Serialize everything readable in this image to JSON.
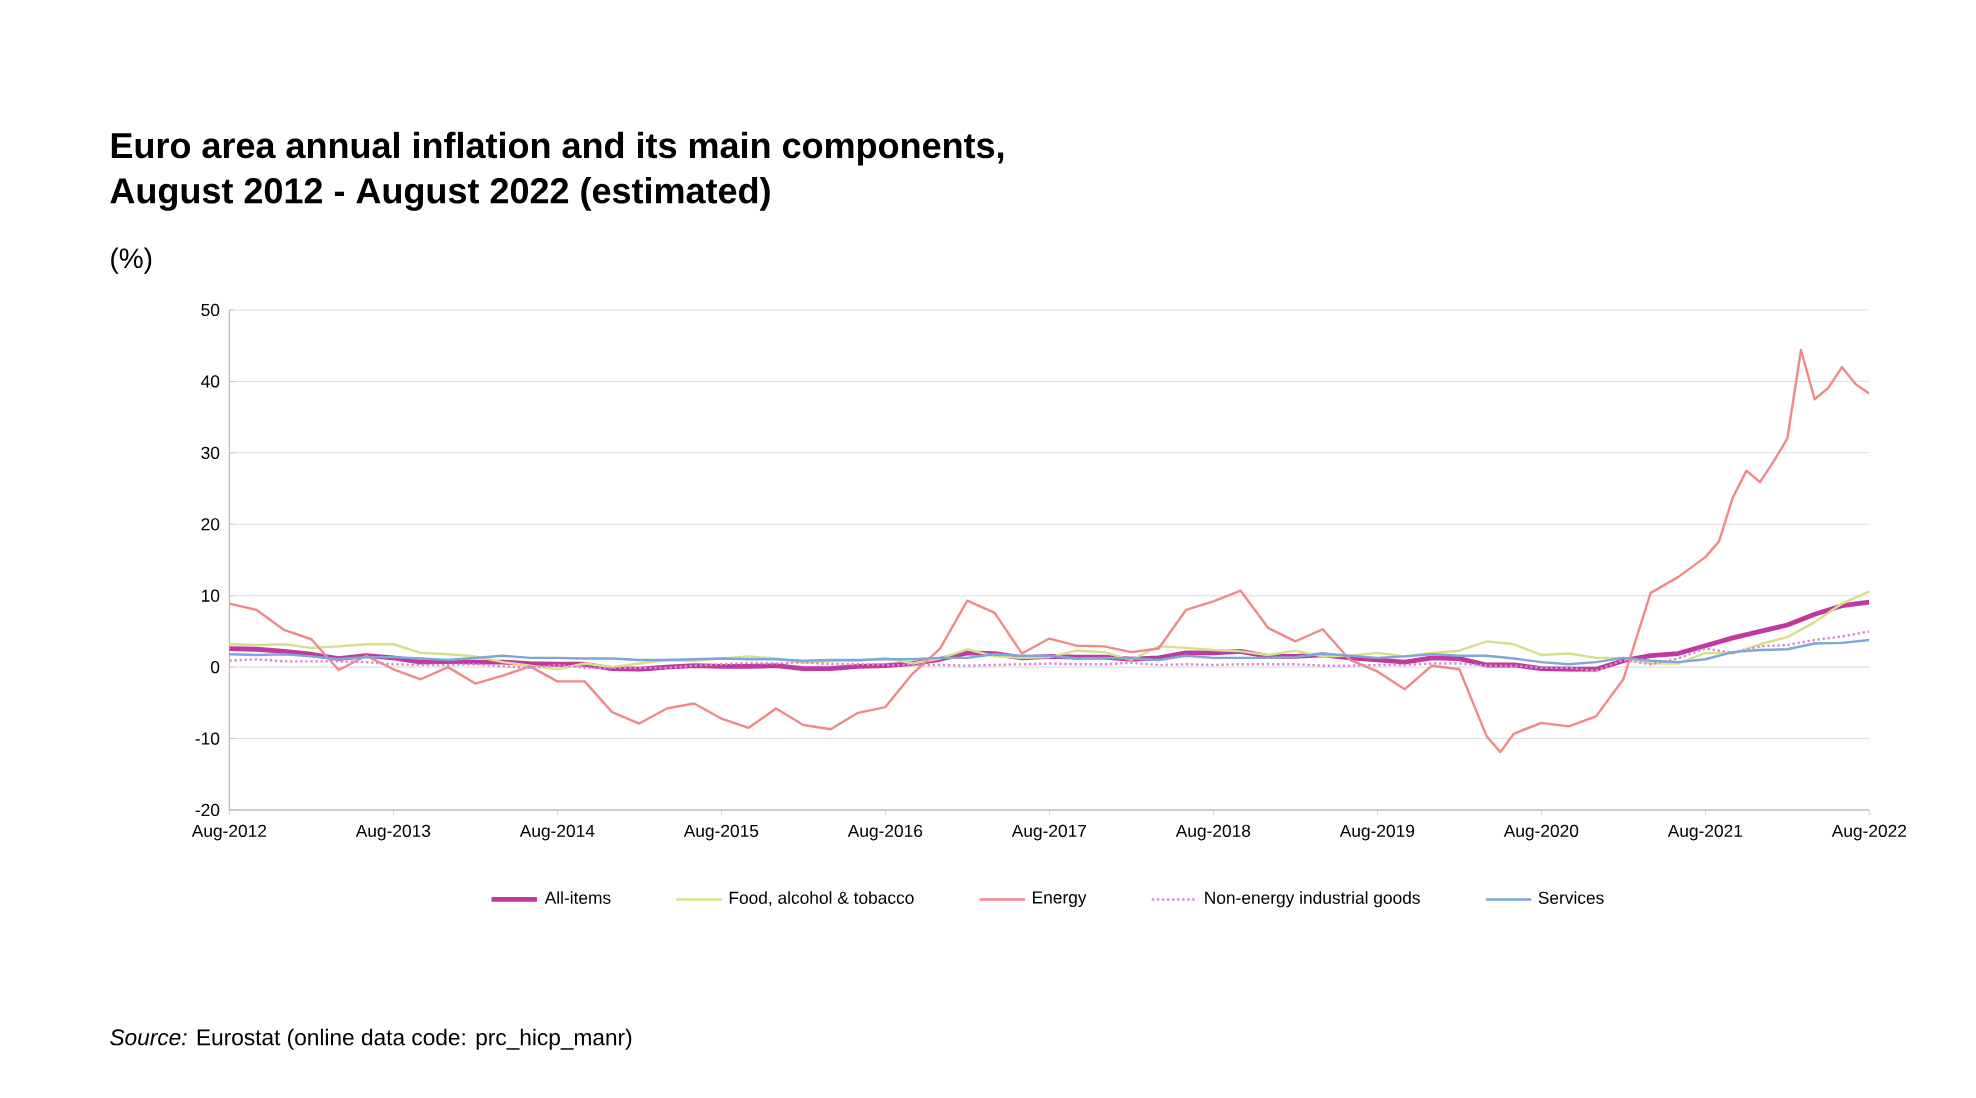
{
  "chart_data": {
    "type": "line",
    "title": "Euro area annual inflation and its main components,",
    "subtitle": "August 2012 - August 2022 (estimated)",
    "ylabel": "(%)",
    "annotations": [
      "*Source:* Eurostat (online data code: prc_hicp_manr)"
    ],
    "x": [
      "2012-08",
      "2012-10",
      "2012-12",
      "2013-02",
      "2013-04",
      "2013-06",
      "2013-08",
      "2013-10",
      "2013-12",
      "2014-02",
      "2014-04",
      "2014-06",
      "2014-08",
      "2014-10",
      "2014-12",
      "2015-02",
      "2015-04",
      "2015-06",
      "2015-08",
      "2015-10",
      "2015-12",
      "2016-02",
      "2016-04",
      "2016-06",
      "2016-08",
      "2016-10",
      "2016-12",
      "2017-02",
      "2017-04",
      "2017-06",
      "2017-08",
      "2017-10",
      "2017-12",
      "2018-02",
      "2018-04",
      "2018-06",
      "2018-08",
      "2018-10",
      "2018-12",
      "2019-02",
      "2019-04",
      "2019-06",
      "2019-08",
      "2019-10",
      "2019-12",
      "2020-02",
      "2020-04",
      "2020-06",
      "2020-08",
      "2020-10",
      "2020-12",
      "2021-02",
      "2021-04",
      "2021-06",
      "2021-08",
      "2021-10",
      "2021-12",
      "2022-02",
      "2022-04",
      "2022-06",
      "2022-08"
    ],
    "series": [
      {
        "name": "All-items",
        "color": "#c0399f",
        "values": [
          2.6,
          2.5,
          2.2,
          1.8,
          1.2,
          1.6,
          1.3,
          0.7,
          0.8,
          0.7,
          0.7,
          0.5,
          0.4,
          0.4,
          -0.2,
          -0.3,
          0.0,
          0.2,
          0.1,
          0.1,
          0.2,
          -0.2,
          -0.2,
          0.1,
          0.2,
          0.5,
          1.1,
          2.0,
          1.9,
          1.3,
          1.5,
          1.4,
          1.4,
          1.1,
          1.3,
          2.0,
          2.0,
          2.2,
          1.5,
          1.5,
          1.7,
          1.3,
          1.0,
          0.7,
          1.3,
          1.2,
          0.3,
          0.3,
          -0.2,
          -0.3,
          -0.3,
          0.9,
          1.6,
          1.9,
          3.0,
          4.1,
          5.0,
          5.9,
          7.4,
          8.6,
          9.1
        ]
      },
      {
        "name": "Food, alcohol & tobacco",
        "color": "#d6e08a",
        "values": [
          3.2,
          3.1,
          3.2,
          2.7,
          2.9,
          3.2,
          3.2,
          2.0,
          1.8,
          1.5,
          0.7,
          0.2,
          -0.3,
          0.5,
          0.0,
          0.5,
          1.0,
          0.9,
          1.2,
          1.5,
          1.2,
          0.6,
          0.8,
          0.9,
          1.3,
          0.5,
          1.2,
          2.5,
          1.5,
          1.3,
          1.4,
          2.3,
          2.1,
          1.0,
          2.9,
          2.7,
          2.4,
          2.2,
          1.7,
          2.3,
          1.5,
          1.6,
          2.0,
          1.5,
          2.0,
          2.3,
          3.6,
          3.2,
          1.7,
          1.9,
          1.3,
          1.3,
          0.5,
          0.5,
          2.0,
          1.9,
          3.2,
          4.2,
          6.3,
          8.9,
          10.6
        ]
      },
      {
        "name": "Energy",
        "color": "#f08a8a",
        "x": [
          "2012-08",
          "2012-10",
          "2012-12",
          "2013-02",
          "2013-04",
          "2013-06",
          "2013-08",
          "2013-10",
          "2013-12",
          "2014-02",
          "2014-04",
          "2014-06",
          "2014-08",
          "2014-10",
          "2014-12",
          "2015-02",
          "2015-04",
          "2015-06",
          "2015-08",
          "2015-10",
          "2015-12",
          "2016-02",
          "2016-04",
          "2016-06",
          "2016-08",
          "2016-10",
          "2016-12",
          "2017-02",
          "2017-04",
          "2017-06",
          "2017-08",
          "2017-10",
          "2017-12",
          "2018-02",
          "2018-04",
          "2018-06",
          "2018-08",
          "2018-10",
          "2018-12",
          "2019-02",
          "2019-04",
          "2019-06",
          "2019-08",
          "2019-10",
          "2019-12",
          "2020-02",
          "2020-04",
          "2020-05",
          "2020-06",
          "2020-08",
          "2020-10",
          "2020-12",
          "2021-02",
          "2021-04",
          "2021-06",
          "2021-08",
          "2021-09",
          "2021-10",
          "2021-11",
          "2021-12",
          "2022-01",
          "2022-02",
          "2022-03",
          "2022-04",
          "2022-05",
          "2022-06",
          "2022-07",
          "2022-08"
        ],
        "values": [
          8.9,
          8.0,
          5.2,
          3.9,
          -0.4,
          1.6,
          -0.3,
          -1.7,
          0.0,
          -2.3,
          -1.2,
          0.1,
          -2.0,
          -2.0,
          -6.3,
          -7.9,
          -5.8,
          -5.1,
          -7.2,
          -8.5,
          -5.8,
          -8.1,
          -8.7,
          -6.4,
          -5.6,
          -0.9,
          2.6,
          9.3,
          7.6,
          1.9,
          4.0,
          3.0,
          2.9,
          2.1,
          2.6,
          8.0,
          9.2,
          10.7,
          5.5,
          3.6,
          5.3,
          1.0,
          -0.6,
          -3.1,
          0.2,
          -0.3,
          -9.7,
          -11.9,
          -9.3,
          -7.8,
          -8.3,
          -6.9,
          -1.7,
          10.4,
          12.6,
          15.4,
          17.6,
          23.7,
          27.5,
          25.9,
          28.8,
          32.0,
          44.4,
          37.5,
          39.1,
          42.0,
          39.6,
          38.3
        ]
      },
      {
        "name": "Non-energy industrial goods",
        "color": "#d88ad0",
        "line_style": "dotted",
        "values": [
          0.9,
          1.1,
          0.8,
          0.8,
          0.8,
          0.7,
          0.4,
          0.3,
          0.3,
          0.4,
          0.1,
          -0.1,
          0.3,
          -0.1,
          -0.1,
          -0.1,
          -0.1,
          0.2,
          0.4,
          0.6,
          0.5,
          0.7,
          0.4,
          0.4,
          0.3,
          0.3,
          0.3,
          0.2,
          0.3,
          0.4,
          0.5,
          0.4,
          0.4,
          0.6,
          0.3,
          0.4,
          0.3,
          0.4,
          0.4,
          0.4,
          0.2,
          0.2,
          0.3,
          0.3,
          0.5,
          0.5,
          0.2,
          0.2,
          -0.1,
          -0.1,
          -0.5,
          1.0,
          0.4,
          1.2,
          2.6,
          2.0,
          2.9,
          3.1,
          3.8,
          4.3,
          5.0
        ]
      },
      {
        "name": "Services",
        "color": "#7fa6d8",
        "values": [
          1.8,
          1.7,
          1.8,
          1.5,
          1.1,
          1.4,
          1.4,
          1.2,
          1.0,
          1.3,
          1.6,
          1.3,
          1.3,
          1.2,
          1.2,
          1.0,
          1.0,
          1.1,
          1.2,
          1.1,
          1.1,
          0.9,
          1.0,
          1.0,
          1.1,
          1.1,
          1.3,
          1.3,
          1.8,
          1.6,
          1.6,
          1.2,
          1.3,
          1.2,
          1.0,
          1.6,
          1.3,
          1.3,
          1.3,
          1.4,
          1.9,
          1.6,
          1.3,
          1.5,
          1.8,
          1.6,
          1.6,
          1.2,
          0.7,
          0.4,
          0.7,
          1.3,
          0.9,
          0.7,
          1.1,
          2.1,
          2.4,
          2.5,
          3.3,
          3.4,
          3.8
        ]
      }
    ],
    "xlim": [
      "2012-08",
      "2022-08"
    ],
    "xticks": [
      {
        "value": "2012-08",
        "label": "Aug-2012"
      },
      {
        "value": "2013-08",
        "label": "Aug-2013"
      },
      {
        "value": "2014-08",
        "label": "Aug-2014"
      },
      {
        "value": "2015-08",
        "label": "Aug-2015"
      },
      {
        "value": "2016-08",
        "label": "Aug-2016"
      },
      {
        "value": "2017-08",
        "label": "Aug-2017"
      },
      {
        "value": "2018-08",
        "label": "Aug-2018"
      },
      {
        "value": "2019-08",
        "label": "Aug-2019"
      },
      {
        "value": "2020-08",
        "label": "Aug-2020"
      },
      {
        "value": "2021-08",
        "label": "Aug-2021"
      },
      {
        "value": "2022-08",
        "label": "Aug-2022"
      }
    ],
    "ylim": [
      -20,
      50
    ],
    "yticks": [
      -20,
      -10,
      0,
      10,
      20,
      30,
      40,
      50
    ],
    "grid": "y",
    "legend": "bottom",
    "marker": "none",
    "line_style": "solid"
  }
}
